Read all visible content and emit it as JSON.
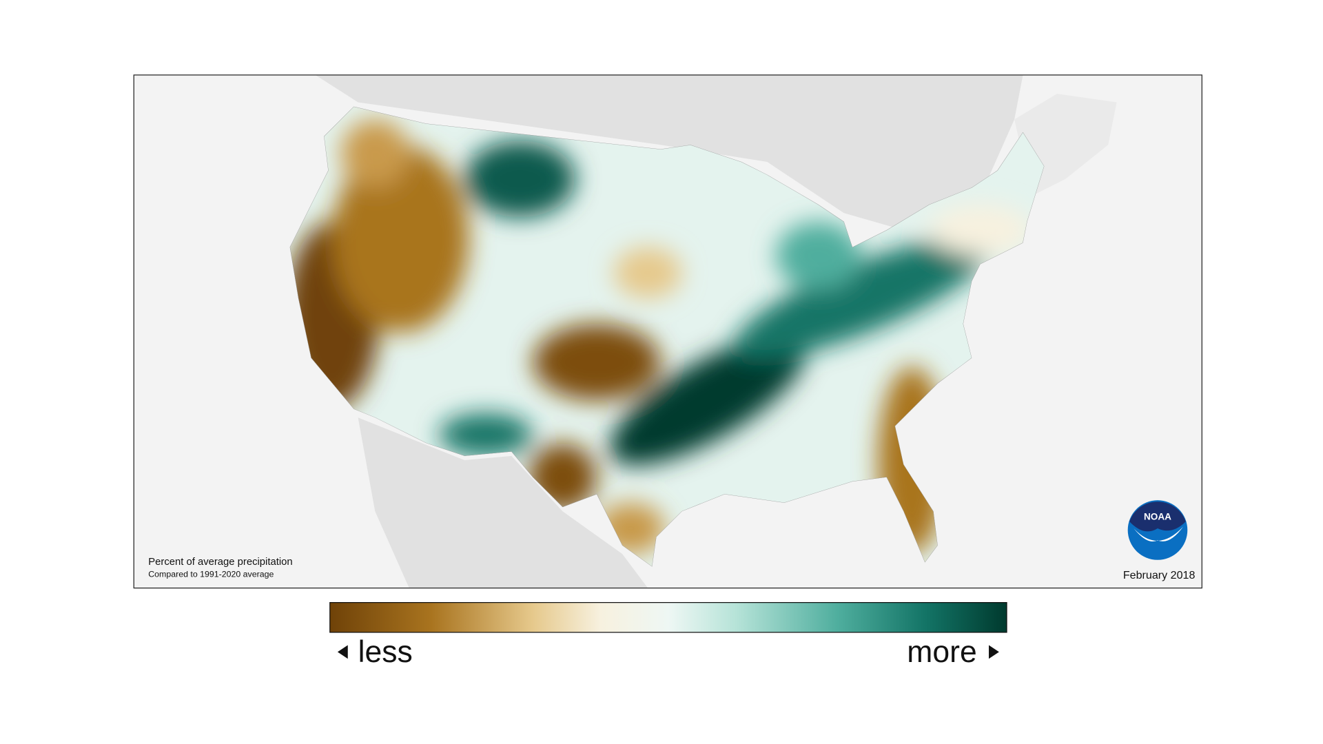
{
  "map": {
    "caption": {
      "title": "Percent of average precipitation",
      "subtitle": "Compared to 1991-2020 average"
    },
    "date": "February 2018"
  },
  "legend": {
    "low_label": "less",
    "high_label": "more"
  },
  "logo": {
    "text": "NOAA"
  }
}
